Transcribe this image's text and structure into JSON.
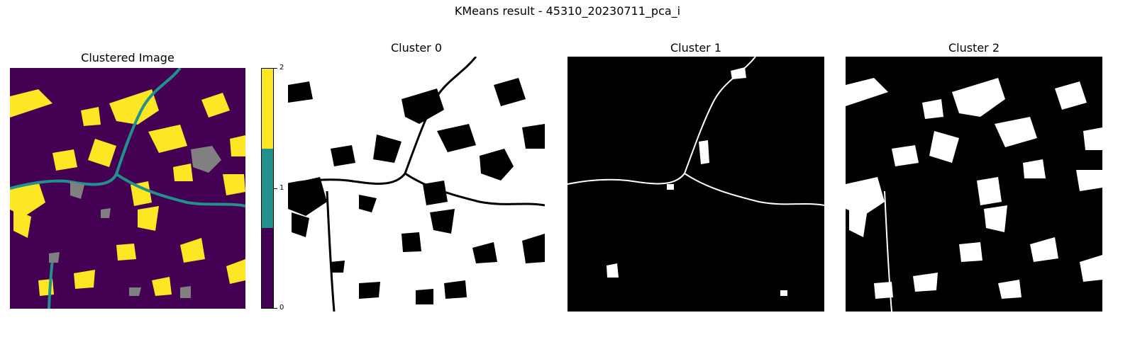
{
  "figure": {
    "suptitle": "KMeans result - 45310_20230711_pca_i"
  },
  "panels": [
    {
      "title": "Clustered Image"
    },
    {
      "title": "Cluster 0"
    },
    {
      "title": "Cluster 1"
    },
    {
      "title": "Cluster 2"
    }
  ],
  "colorbar": {
    "ticks": [
      "0",
      "1",
      "2"
    ],
    "colors": [
      "#440154",
      "#21918c",
      "#fde725"
    ],
    "nodata_color": "#808080"
  },
  "cluster_colors": {
    "0": "#440154",
    "1": "#21918c",
    "2": "#fde725"
  },
  "mask_colors": {
    "on": "#ffffff",
    "off": "#000000"
  }
}
